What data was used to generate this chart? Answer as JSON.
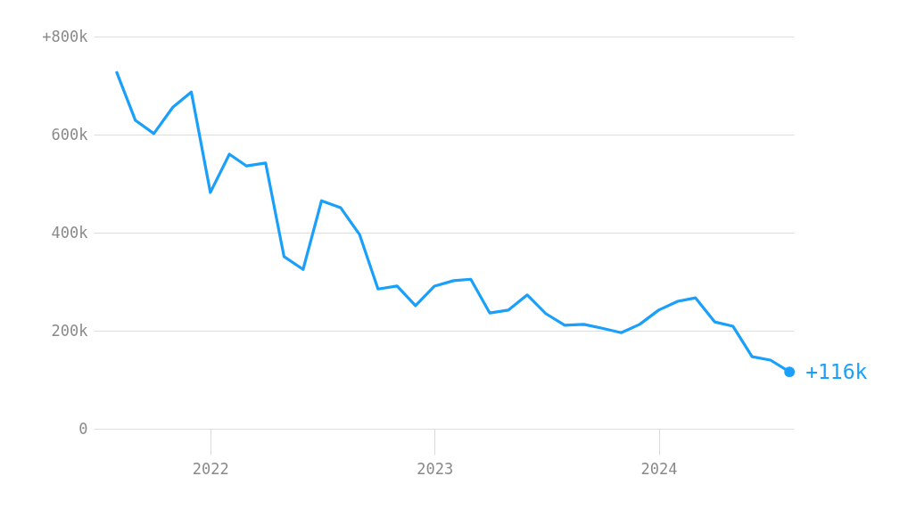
{
  "chart_data": {
    "type": "line",
    "x": [
      "2021-08",
      "2021-09",
      "2021-10",
      "2021-11",
      "2021-12",
      "2022-01",
      "2022-02",
      "2022-03",
      "2022-04",
      "2022-05",
      "2022-06",
      "2022-07",
      "2022-08",
      "2022-09",
      "2022-10",
      "2022-11",
      "2022-12",
      "2023-01",
      "2023-02",
      "2023-03",
      "2023-04",
      "2023-05",
      "2023-06",
      "2023-07",
      "2023-08",
      "2023-09",
      "2023-10",
      "2023-11",
      "2023-12",
      "2024-01",
      "2024-02",
      "2024-03",
      "2024-04",
      "2024-05",
      "2024-06",
      "2024-07",
      "2024-08"
    ],
    "series": [
      {
        "color": "#1a9ffa",
        "values": [
          729,
          629,
          602,
          656,
          687,
          482,
          560,
          536,
          542,
          351,
          325,
          465,
          451,
          396,
          285,
          291,
          251,
          291,
          302,
          305,
          236,
          242,
          273,
          235,
          211,
          213,
          205,
          196,
          213,
          242,
          260,
          267,
          218,
          209,
          147,
          140,
          116
        ]
      }
    ],
    "xlim": [
      "2021-06-25",
      "2024-08-08"
    ],
    "xticks": [
      "2022",
      "2023",
      "2024"
    ],
    "ylim": [
      0,
      800
    ],
    "yticks": [
      {
        "value": 0,
        "label": "0"
      },
      {
        "value": 200,
        "label": "200k"
      },
      {
        "value": 400,
        "label": "400k"
      },
      {
        "value": 600,
        "label": "600k"
      },
      {
        "value": 800,
        "label": "+800k"
      }
    ],
    "grid": "y",
    "marker": "none",
    "line_style": "solid",
    "annotations": [
      {
        "text": "+116k",
        "x": "2024-08",
        "y": 116
      }
    ]
  }
}
